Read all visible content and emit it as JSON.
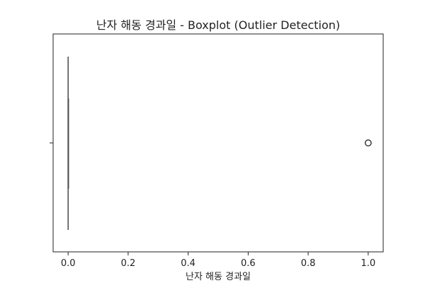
{
  "chart_data": {
    "type": "boxplot",
    "title": "난자 해동 경과일 - Boxplot (Outlier Detection)",
    "xlabel": "난자 해동 경과일",
    "ylabel": "",
    "orientation": "horizontal",
    "xlim": [
      -0.05,
      1.05
    ],
    "xticks": [
      0.0,
      0.2,
      0.4,
      0.6,
      0.8,
      1.0
    ],
    "xtick_labels": [
      "0.0",
      "0.2",
      "0.4",
      "0.6",
      "0.8",
      "1.0"
    ],
    "box": {
      "min": 0.0,
      "q1": 0.0,
      "median": 0.0,
      "q3": 0.0,
      "max": 0.0
    },
    "outliers": [
      1.0
    ],
    "grid": false,
    "colors": {
      "box": "#4a4a4a",
      "outlier_edge": "#3a3a3a",
      "frame": "#222222"
    }
  }
}
